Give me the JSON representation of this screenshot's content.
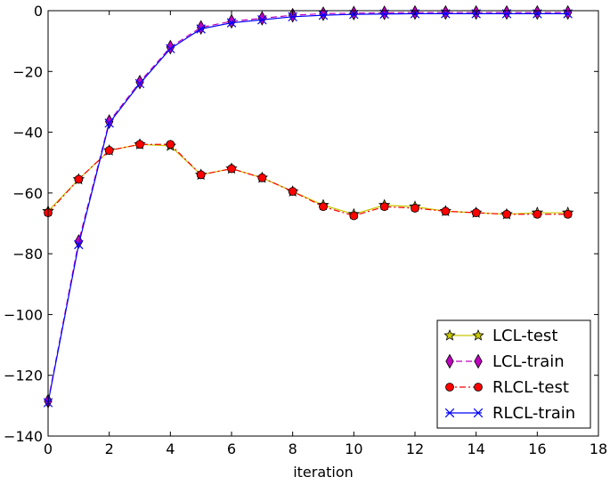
{
  "chart_data": {
    "type": "line",
    "title": "",
    "xlabel": "iteration",
    "ylabel": "",
    "xlim": [
      0,
      18
    ],
    "ylim": [
      -140,
      0
    ],
    "xticks": [
      0,
      2,
      4,
      6,
      8,
      10,
      12,
      14,
      16,
      18
    ],
    "yticks": [
      0,
      -20,
      -40,
      -60,
      -80,
      -100,
      -120,
      -140
    ],
    "grid": false,
    "legend_position": "lower-right",
    "x": [
      0,
      1,
      2,
      3,
      4,
      5,
      6,
      7,
      8,
      9,
      10,
      11,
      12,
      13,
      14,
      15,
      16,
      17
    ],
    "series": [
      {
        "name": "LCL-test",
        "color": "#c8c800",
        "line_style": "solid",
        "marker": "star",
        "marker_color": "#c8c800",
        "values": [
          -66,
          -55.5,
          -46,
          -44,
          -44.5,
          -54,
          -52,
          -55,
          -59.5,
          -64,
          -67,
          -64,
          -64.5,
          -66,
          -66.5,
          -67,
          -66.5,
          -66.5
        ]
      },
      {
        "name": "LCL-train",
        "color": "#bf00bf",
        "line_style": "dashed",
        "marker": "thin-diamond",
        "marker_color": "#bf00bf",
        "values": [
          -128.5,
          -76,
          -36.5,
          -23.5,
          -12,
          -5.5,
          -3.5,
          -2.5,
          -1.5,
          -1,
          -0.8,
          -0.7,
          -0.6,
          -0.6,
          -0.6,
          -0.6,
          -0.6,
          -0.6
        ]
      },
      {
        "name": "RLCL-test",
        "color": "#ff0000",
        "line_style": "dashdot",
        "marker": "circle",
        "marker_color": "#ff0000",
        "values": [
          -66.5,
          -55.5,
          -46,
          -44,
          -44,
          -54,
          -52,
          -55,
          -59.5,
          -64.5,
          -67.5,
          -64.5,
          -65,
          -66,
          -66.5,
          -67,
          -67,
          -67
        ]
      },
      {
        "name": "RLCL-train",
        "color": "#0000ff",
        "line_style": "solid",
        "marker": "x",
        "marker_color": "#0000ff",
        "values": [
          -129,
          -77,
          -37,
          -24,
          -12.5,
          -6,
          -4,
          -3,
          -2,
          -1.5,
          -1.2,
          -1.1,
          -1,
          -1,
          -1,
          -1,
          -1,
          -1
        ]
      }
    ]
  }
}
